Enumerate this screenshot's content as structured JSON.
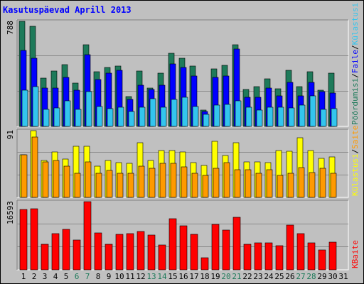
{
  "title": "Kasutuspäevad Aprill 2013",
  "colors": {
    "background": "#c0c0c0",
    "title": "#0000ff",
    "gridline": "#8c8c8c",
    "weekday_label": "#000000",
    "weekend_label": "#1e7a5a",
    "pages": "#1e7a5a",
    "files": "#0000ff",
    "hits": "#33c5ee",
    "visits": "#ffff00",
    "sites": "#ff9a00",
    "kbytes": "#ff0000"
  },
  "chart_data": [
    {
      "type": "bar",
      "name": "requests",
      "title": "",
      "ymax_label": "788",
      "ylim": [
        0,
        788
      ],
      "categories": [
        "1",
        "2",
        "3",
        "4",
        "5",
        "6",
        "7",
        "8",
        "9",
        "10",
        "11",
        "12",
        "13",
        "14",
        "15",
        "16",
        "17",
        "18",
        "19",
        "20",
        "21",
        "22",
        "23",
        "24",
        "25",
        "26",
        "27",
        "28",
        "29",
        "30",
        "31"
      ],
      "weekend_days": [
        "6",
        "7",
        "13",
        "14",
        "20",
        "21",
        "27",
        "28"
      ],
      "series": [
        {
          "name": "Pöördumisi",
          "color": "#1e7a5a",
          "values": [
            788,
            750,
            360,
            415,
            465,
            325,
            610,
            410,
            440,
            450,
            225,
            415,
            285,
            400,
            550,
            510,
            450,
            125,
            430,
            460,
            610,
            275,
            300,
            355,
            280,
            420,
            300,
            410,
            270,
            400,
            0
          ]
        },
        {
          "name": "Faile",
          "color": "#0000ff",
          "values": [
            570,
            510,
            290,
            290,
            370,
            270,
            540,
            350,
            400,
            420,
            200,
            310,
            275,
            310,
            470,
            440,
            380,
            110,
            370,
            380,
            580,
            220,
            220,
            290,
            230,
            330,
            230,
            330,
            260,
            250,
            0
          ]
        },
        {
          "name": "Külastusi",
          "color": "#33c5ee",
          "values": [
            270,
            300,
            130,
            140,
            190,
            130,
            260,
            150,
            135,
            145,
            110,
            145,
            210,
            145,
            200,
            220,
            150,
            90,
            160,
            165,
            190,
            145,
            125,
            145,
            145,
            140,
            160,
            230,
            130,
            135,
            0
          ]
        }
      ]
    },
    {
      "type": "bar",
      "name": "visits",
      "title": "",
      "ymax_label": "91",
      "ylim": [
        0,
        91
      ],
      "categories": [
        "1",
        "2",
        "3",
        "4",
        "5",
        "6",
        "7",
        "8",
        "9",
        "10",
        "11",
        "12",
        "13",
        "14",
        "15",
        "16",
        "17",
        "18",
        "19",
        "20",
        "21",
        "22",
        "23",
        "24",
        "25",
        "26",
        "27",
        "28",
        "29",
        "30",
        "31"
      ],
      "series": [
        {
          "name": "Külastusi",
          "color": "#ffff00",
          "values": [
            58,
            91,
            50,
            62,
            52,
            70,
            70,
            43,
            50,
            47,
            46,
            75,
            50,
            64,
            64,
            62,
            47,
            44,
            76,
            57,
            75,
            48,
            48,
            47,
            64,
            63,
            81,
            64,
            53,
            55,
            0
          ]
        },
        {
          "name": "Saite",
          "color": "#ff9a00",
          "values": [
            58,
            82,
            48,
            50,
            43,
            33,
            48,
            33,
            37,
            33,
            33,
            43,
            40,
            46,
            46,
            42,
            33,
            30,
            40,
            47,
            38,
            38,
            33,
            38,
            30,
            33,
            41,
            34,
            40,
            33,
            0
          ]
        }
      ]
    },
    {
      "type": "bar",
      "name": "kbytes",
      "title": "",
      "ymax_label": "16593",
      "ylim": [
        0,
        16593
      ],
      "categories": [
        "1",
        "2",
        "3",
        "4",
        "5",
        "6",
        "7",
        "8",
        "9",
        "10",
        "11",
        "12",
        "13",
        "14",
        "15",
        "16",
        "17",
        "18",
        "19",
        "20",
        "21",
        "22",
        "23",
        "24",
        "25",
        "26",
        "27",
        "28",
        "29",
        "30",
        "31"
      ],
      "series": [
        {
          "name": "KBaite",
          "color": "#ff0000",
          "values": [
            14700,
            14900,
            6300,
            8900,
            9900,
            7200,
            16593,
            9000,
            6300,
            8700,
            8800,
            9300,
            8400,
            6100,
            12500,
            10800,
            8700,
            2900,
            11000,
            9600,
            12800,
            6300,
            6600,
            6500,
            5800,
            10900,
            8900,
            6600,
            4800,
            6800,
            0
          ]
        }
      ]
    }
  ],
  "legend_right": {
    "panel1": [
      {
        "text": "Pöördumisi",
        "color": "#1e7a5a"
      },
      {
        "text": "Faile",
        "color": "#0000ff"
      },
      {
        "text": "Külastusi",
        "color": "#33c5ee"
      }
    ],
    "panel2": [
      {
        "text": "Külastusi",
        "color": "#ffff00"
      },
      {
        "text": "Saite",
        "color": "#ff9a00"
      }
    ],
    "panel3": [
      {
        "text": "KBaite",
        "color": "#ff0000"
      }
    ],
    "separator": "/"
  }
}
